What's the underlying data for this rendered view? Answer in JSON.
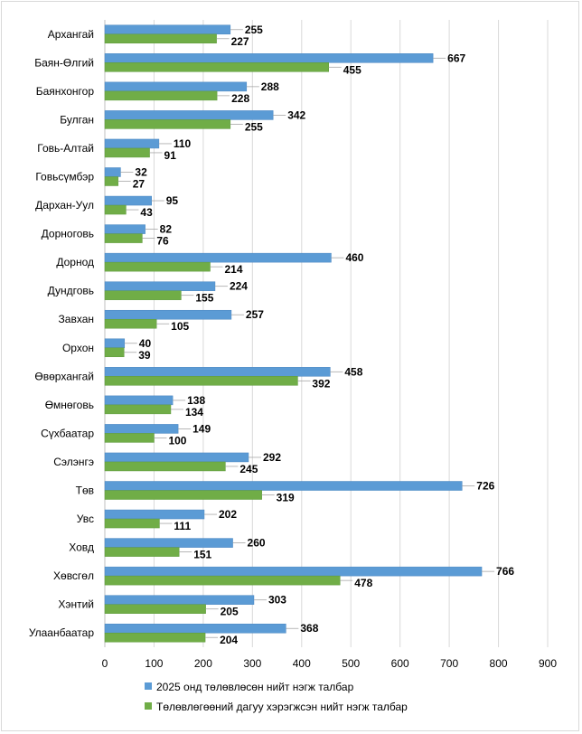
{
  "chart_data": {
    "type": "bar",
    "orientation": "horizontal",
    "title": "",
    "xlabel": "",
    "ylabel": "",
    "xlim": [
      0,
      900
    ],
    "ticks": [
      0,
      100,
      200,
      300,
      400,
      500,
      600,
      700,
      800,
      900
    ],
    "grid": true,
    "legend_position": "bottom",
    "categories": [
      "Архангай",
      "Баян-Өлгий",
      "Баянхонгор",
      "Булган",
      "Говь-Алтай",
      "Говьсүмбэр",
      "Дархан-Уул",
      "Дорноговь",
      "Дорнод",
      "Дундговь",
      "Завхан",
      "Орхон",
      "Өвөрхангай",
      "Өмнөговь",
      "Сүхбаатар",
      "Сэлэнгэ",
      "Төв",
      "Увс",
      "Ховд",
      "Хөвсгөл",
      "Хэнтий",
      "Улаанбаатар"
    ],
    "series": [
      {
        "name": "2025 онд төлөвлөсөн нийт нэгж талбар",
        "color": "#5b9bd5",
        "values": [
          255,
          667,
          288,
          342,
          110,
          32,
          95,
          82,
          460,
          224,
          257,
          40,
          458,
          138,
          149,
          292,
          726,
          202,
          260,
          766,
          303,
          368
        ]
      },
      {
        "name": "Төлөвлөгөөний дагуу хэрэгжсэн нийт нэгж талбар",
        "color": "#70ad47",
        "values": [
          227,
          455,
          228,
          255,
          91,
          27,
          43,
          76,
          214,
          155,
          105,
          39,
          392,
          134,
          100,
          245,
          319,
          111,
          151,
          478,
          205,
          204
        ]
      }
    ]
  }
}
